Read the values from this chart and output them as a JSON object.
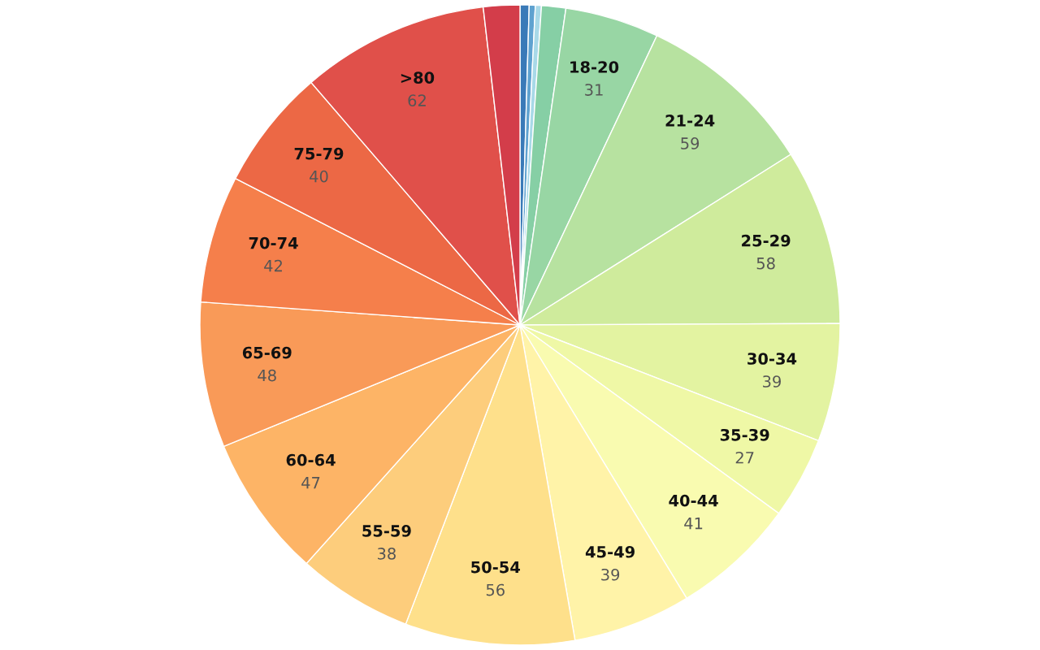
{
  "chart_data": {
    "type": "pie",
    "categories": [
      null,
      null,
      null,
      null,
      "18-20",
      "21-24",
      "25-29",
      "30-34",
      "35-39",
      "40-44",
      "45-49",
      "50-54",
      "55-59",
      "60-64",
      "65-69",
      "70-74",
      "75-79",
      ">80",
      null
    ],
    "values": [
      3,
      2,
      2,
      8,
      31,
      59,
      58,
      39,
      27,
      41,
      39,
      56,
      38,
      47,
      48,
      42,
      40,
      62,
      12
    ],
    "colors": [
      "#3a7ab8",
      "#5fa2d0",
      "#a8d9e8",
      "#86cfa5",
      "#98d6a4",
      "#b7e2a0",
      "#cfeb9c",
      "#e3f3a1",
      "#eff8a6",
      "#f9fbb0",
      "#fff3a8",
      "#fee08b",
      "#fdcd7c",
      "#fdb466",
      "#f99a58",
      "#f57f4b",
      "#ec6845",
      "#e0504a",
      "#d33d4a"
    ],
    "value_labels": [
      null,
      null,
      null,
      null,
      "31",
      "59",
      "58",
      "39",
      "27",
      "41",
      "39",
      "56",
      "38",
      "47",
      "48",
      "42",
      "40",
      "62",
      null
    ]
  }
}
